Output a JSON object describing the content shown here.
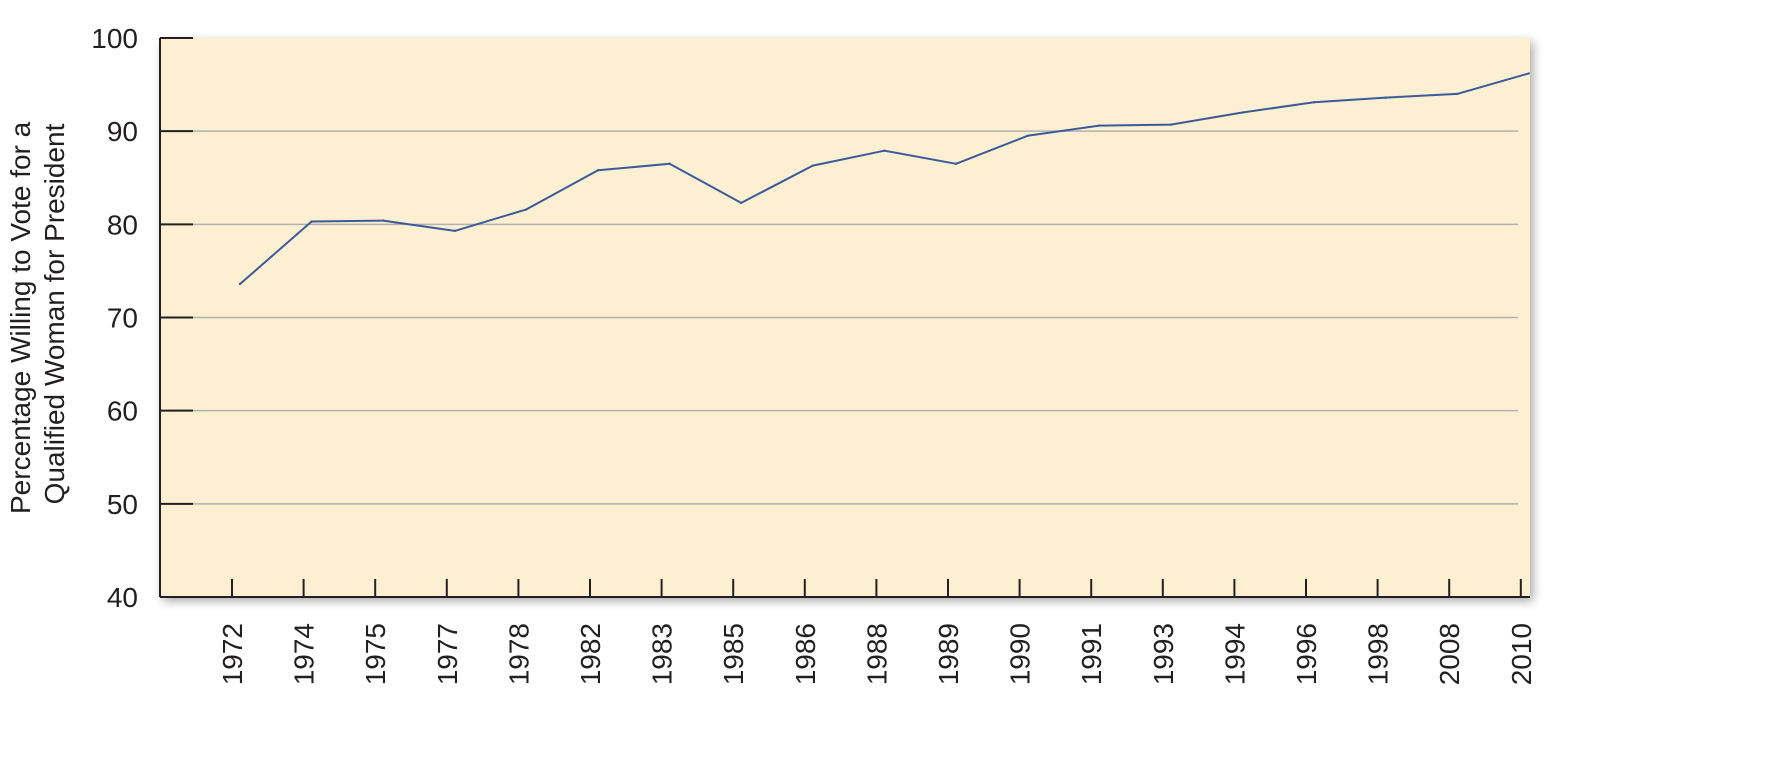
{
  "chart_data": {
    "type": "line",
    "title": "",
    "xlabel": "",
    "ylabel_lines": [
      "Percentage Willing to Vote for a",
      "Qualified Woman for President"
    ],
    "categories": [
      "1972",
      "1974",
      "1975",
      "1977",
      "1978",
      "1982",
      "1983",
      "1985",
      "1986",
      "1988",
      "1989",
      "1990",
      "1991",
      "1993",
      "1994",
      "1996",
      "1998",
      "2008",
      "2010"
    ],
    "series": [
      {
        "values": [
          73.6,
          80.3,
          80.4,
          79.3,
          81.6,
          85.8,
          86.5,
          82.3,
          86.3,
          87.9,
          86.5,
          89.5,
          90.6,
          90.7,
          92.0,
          93.1,
          93.6,
          94.0,
          96.2
        ]
      }
    ],
    "ylim": [
      40,
      100
    ],
    "yticks": [
      40,
      50,
      60,
      70,
      80,
      90,
      100
    ],
    "grid": true,
    "colors": {
      "line": "#3b5a9a",
      "plot_bg": "#fdf0d2",
      "grid": "#b3b1b0",
      "axis": "#231f20"
    }
  }
}
